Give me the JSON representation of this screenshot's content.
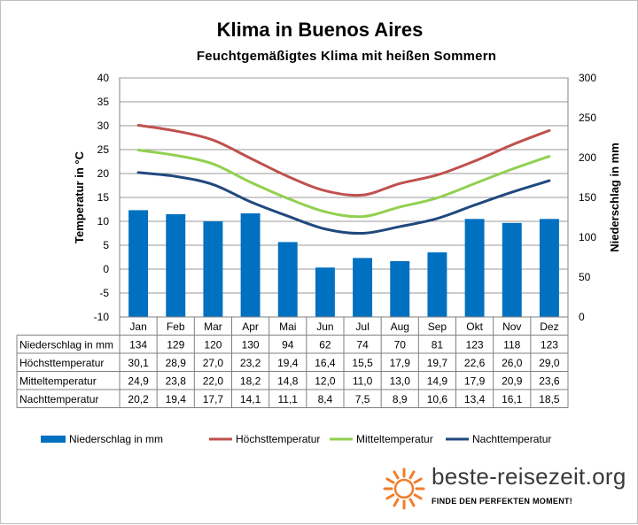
{
  "chart_data": {
    "type": "bar",
    "title": "Klima in Buenos Aires",
    "subtitle": "Feuchtgemäßigtes  Klima mit heißen  Sommern",
    "categories": [
      "Jan",
      "Feb",
      "Mar",
      "Apr",
      "Mai",
      "Jun",
      "Jul",
      "Aug",
      "Sep",
      "Okt",
      "Nov",
      "Dez"
    ],
    "y_left": {
      "label": "Temperatur in °C",
      "lim": [
        -10,
        40
      ],
      "ticks": [
        "-10",
        "-5",
        "0",
        "5",
        "10",
        "15",
        "20",
        "25",
        "30",
        "35",
        "40"
      ]
    },
    "y_right": {
      "label": "Niederschlag in mm",
      "lim": [
        0,
        300
      ],
      "ticks": [
        "0",
        "50",
        "100",
        "150",
        "200",
        "250",
        "300"
      ]
    },
    "grid": true,
    "legend_position": "bottom",
    "series": [
      {
        "name": "Niederschlag in mm",
        "type": "bar",
        "axis": "right",
        "color": "#0070c0",
        "values": [
          134,
          129,
          120,
          130,
          94,
          62,
          74,
          70,
          81,
          123,
          118,
          123
        ],
        "labels": [
          "134",
          "129",
          "120",
          "130",
          "94",
          "62",
          "74",
          "70",
          "81",
          "123",
          "118",
          "123"
        ]
      },
      {
        "name": "Höchsttemperatur",
        "type": "line",
        "axis": "left",
        "color": "#c0504d",
        "values": [
          30.1,
          28.9,
          27.0,
          23.2,
          19.4,
          16.4,
          15.5,
          17.9,
          19.7,
          22.6,
          26.0,
          29.0
        ],
        "labels": [
          "30,1",
          "28,9",
          "27,0",
          "23,2",
          "19,4",
          "16,4",
          "15,5",
          "17,9",
          "19,7",
          "22,6",
          "26,0",
          "29,0"
        ]
      },
      {
        "name": "Mitteltemperatur",
        "type": "line",
        "axis": "left",
        "color": "#92d050",
        "values": [
          24.9,
          23.8,
          22.0,
          18.2,
          14.8,
          12.0,
          11.0,
          13.0,
          14.9,
          17.9,
          20.9,
          23.6
        ],
        "labels": [
          "24,9",
          "23,8",
          "22,0",
          "18,2",
          "14,8",
          "12,0",
          "11,0",
          "13,0",
          "14,9",
          "17,9",
          "20,9",
          "23,6"
        ]
      },
      {
        "name": "Nachttemperatur",
        "type": "line",
        "axis": "left",
        "color": "#1f497d",
        "values": [
          20.2,
          19.4,
          17.7,
          14.1,
          11.1,
          8.4,
          7.5,
          8.9,
          10.6,
          13.4,
          16.1,
          18.5
        ],
        "labels": [
          "20,2",
          "19,4",
          "17,7",
          "14,1",
          "11,1",
          "8,4",
          "7,5",
          "8,9",
          "10,6",
          "13,4",
          "16,1",
          "18,5"
        ]
      }
    ]
  },
  "brand": {
    "name": "beste-reisezeit.org",
    "slogan": "FINDE DEN PERFEKTEN MOMENT!",
    "sun_icon": "sun-icon",
    "sun_color": "#f07d2a"
  }
}
